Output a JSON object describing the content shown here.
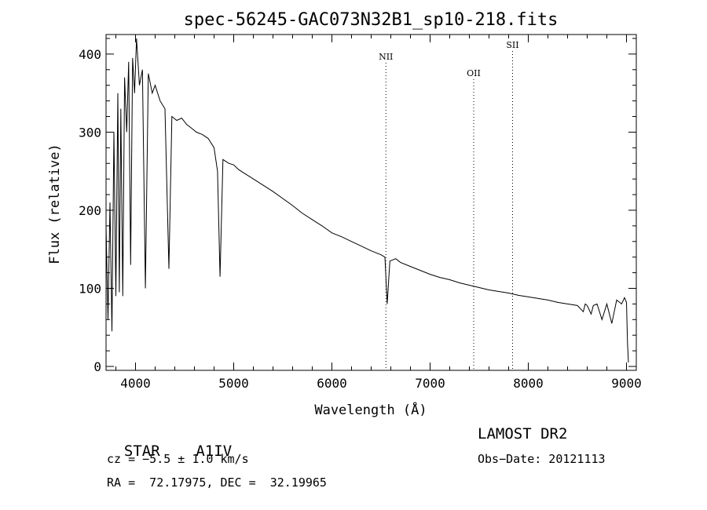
{
  "chart_data": {
    "type": "line",
    "title": "spec-56245-GAC073N32B1_sp10-218.fits",
    "xlabel": "Wavelength (Å)",
    "ylabel": "Flux (relative)",
    "xlim": [
      3700,
      9100
    ],
    "ylim": [
      -5,
      425
    ],
    "xticks": [
      4000,
      5000,
      6000,
      7000,
      8000,
      9000
    ],
    "yticks": [
      0,
      100,
      200,
      300,
      400
    ],
    "grid": false,
    "series": [
      {
        "x": [
          3700,
          3720,
          3740,
          3760,
          3780,
          3800,
          3820,
          3835,
          3850,
          3870,
          3889,
          3910,
          3930,
          3950,
          3970,
          3990,
          4010,
          4040,
          4070,
          4101,
          4130,
          4170,
          4200,
          4250,
          4300,
          4340,
          4370,
          4420,
          4470,
          4520,
          4570,
          4620,
          4680,
          4740,
          4800,
          4835,
          4861,
          4890,
          4950,
          5000,
          5050,
          5100,
          5200,
          5300,
          5400,
          5500,
          5600,
          5700,
          5800,
          5900,
          6000,
          6100,
          6200,
          6300,
          6400,
          6500,
          6540,
          6563,
          6590,
          6650,
          6700,
          6800,
          6900,
          7000,
          7100,
          7200,
          7300,
          7400,
          7500,
          7600,
          7700,
          7800,
          7900,
          8000,
          8100,
          8200,
          8300,
          8400,
          8500,
          8560,
          8580,
          8600,
          8640,
          8662,
          8700,
          8750,
          8800,
          8850,
          8900,
          8950,
          8980,
          9000,
          9010,
          9020
        ],
        "y": [
          180,
          60,
          210,
          45,
          300,
          90,
          350,
          95,
          330,
          90,
          370,
          300,
          390,
          130,
          395,
          350,
          420,
          360,
          380,
          100,
          375,
          350,
          360,
          340,
          330,
          125,
          320,
          315,
          318,
          310,
          305,
          300,
          297,
          292,
          280,
          250,
          115,
          265,
          260,
          258,
          252,
          248,
          240,
          232,
          224,
          215,
          206,
          196,
          188,
          180,
          171,
          166,
          160,
          154,
          148,
          143,
          140,
          80,
          135,
          138,
          133,
          128,
          123,
          118,
          114,
          111,
          107,
          104,
          101,
          98,
          96,
          94,
          91,
          89,
          87,
          85,
          82,
          80,
          78,
          70,
          80,
          78,
          67,
          78,
          80,
          60,
          80,
          55,
          85,
          80,
          88,
          82,
          30,
          5
        ]
      }
    ],
    "annotations": [
      {
        "label": "NII",
        "x": 6550
      },
      {
        "label": "OII",
        "x": 7444
      },
      {
        "label": "SII",
        "x": 7840
      }
    ]
  },
  "info": {
    "object_class": "STAR",
    "subclass": "A1IV",
    "survey": "LAMOST DR2",
    "cz": "cz = −5.5 ± 1.0 km/s",
    "obs_date": "Obs−Date: 20121113",
    "coords": "RA =  72.17975, DEC =  32.19965"
  }
}
